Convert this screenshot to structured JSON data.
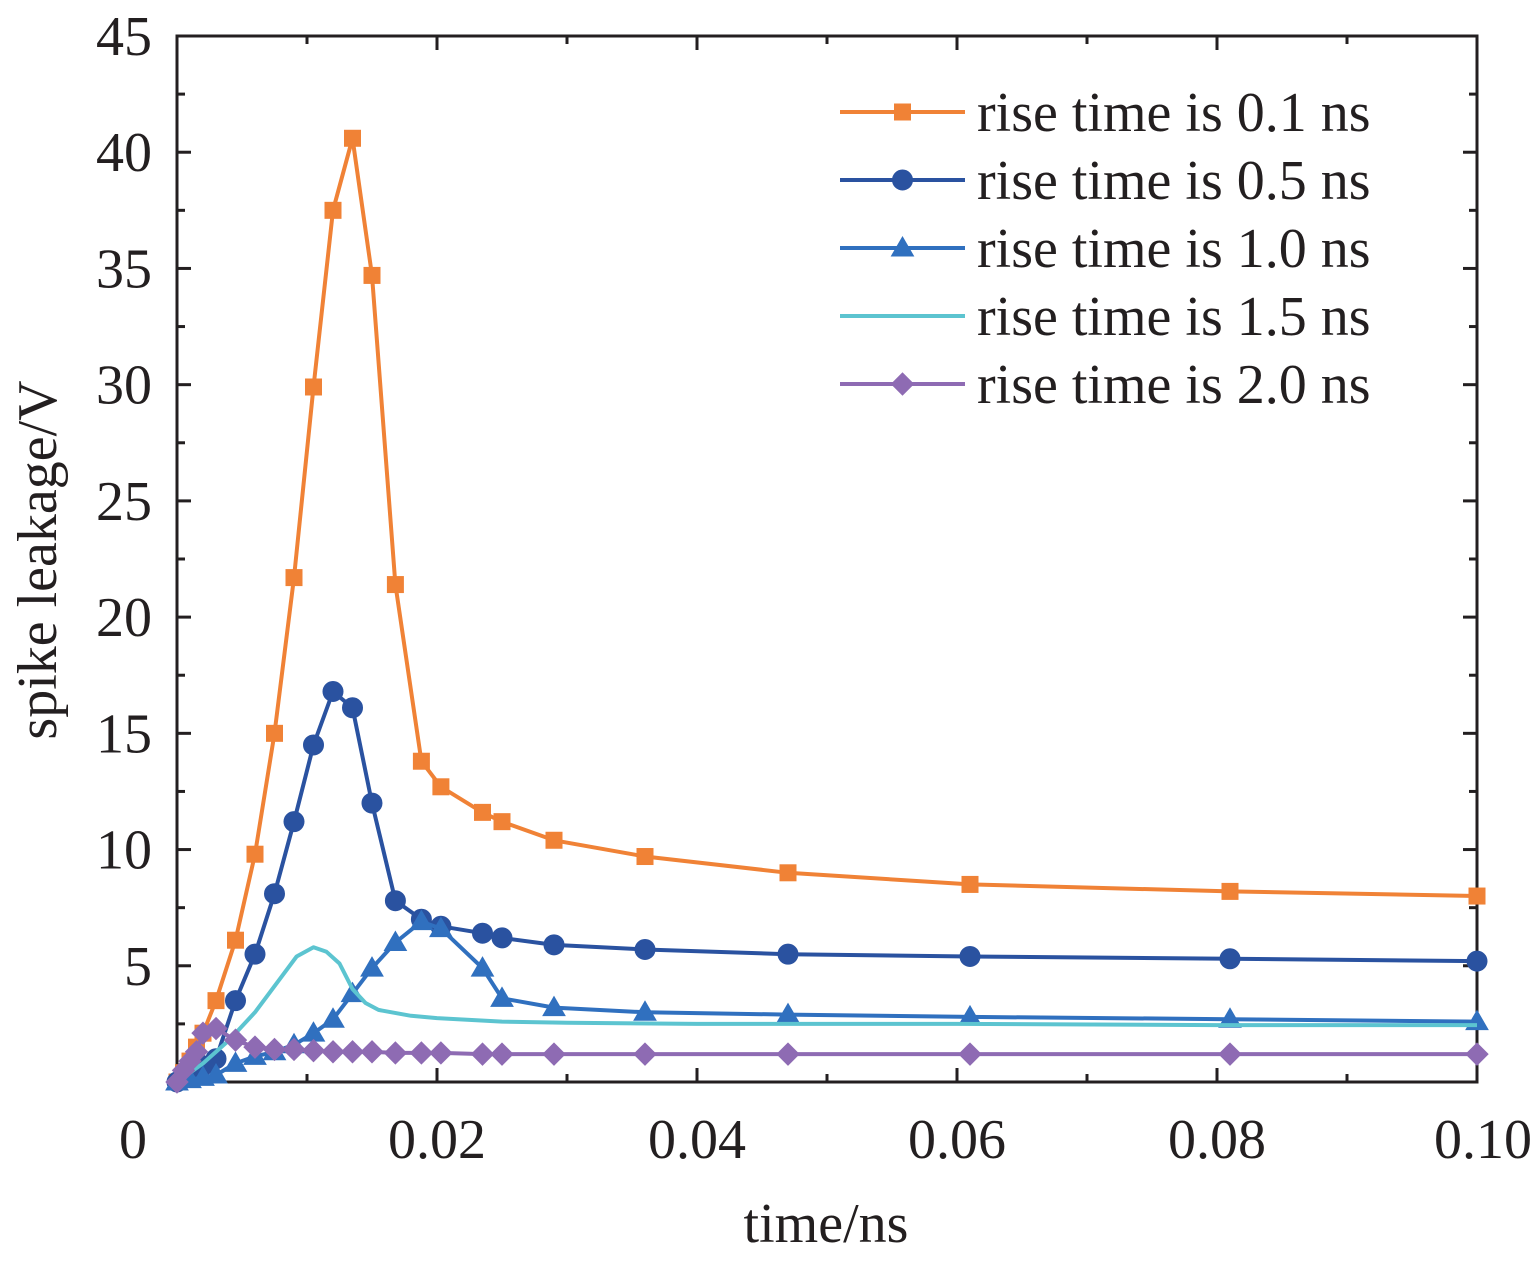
{
  "chart_data": {
    "type": "line",
    "title": "",
    "xlabel": "time/ns",
    "ylabel": "spike leakage/V",
    "xlim": [
      0,
      0.1
    ],
    "ylim": [
      0,
      45
    ],
    "x_ticks": [
      {
        "value": 0,
        "label": "0"
      },
      {
        "value": 0.02,
        "label": "0.02"
      },
      {
        "value": 0.04,
        "label": "0.04"
      },
      {
        "value": 0.06,
        "label": "0.06"
      },
      {
        "value": 0.08,
        "label": "0.08"
      },
      {
        "value": 0.1,
        "label": "0.10"
      }
    ],
    "y_ticks": [
      {
        "value": 5,
        "label": "5"
      },
      {
        "value": 10,
        "label": "10"
      },
      {
        "value": 15,
        "label": "15"
      },
      {
        "value": 20,
        "label": "20"
      },
      {
        "value": 25,
        "label": "25"
      },
      {
        "value": 30,
        "label": "30"
      },
      {
        "value": 35,
        "label": "35"
      },
      {
        "value": 40,
        "label": "40"
      },
      {
        "value": 45,
        "label": "45"
      }
    ],
    "grid": false,
    "legend_position": "top-right",
    "series": [
      {
        "name": "rise time is 0.1 ns",
        "color": "#f08236",
        "marker": "square",
        "points": [
          [
            0,
            0
          ],
          [
            0.0005,
            0.4
          ],
          [
            0.001,
            0.9
          ],
          [
            0.0015,
            1.5
          ],
          [
            0.002,
            2.1
          ],
          [
            0.003,
            3.5
          ],
          [
            0.0045,
            6.1
          ],
          [
            0.006,
            9.8
          ],
          [
            0.0075,
            15.0
          ],
          [
            0.009,
            21.7
          ],
          [
            0.0105,
            29.9
          ],
          [
            0.012,
            37.5
          ],
          [
            0.0135,
            40.6
          ],
          [
            0.015,
            34.7
          ],
          [
            0.0168,
            21.4
          ],
          [
            0.0188,
            13.8
          ],
          [
            0.0203,
            12.7
          ],
          [
            0.0235,
            11.6
          ],
          [
            0.025,
            11.2
          ],
          [
            0.029,
            10.4
          ],
          [
            0.036,
            9.7
          ],
          [
            0.047,
            9.0
          ],
          [
            0.061,
            8.5
          ],
          [
            0.081,
            8.2
          ],
          [
            0.1,
            8.0
          ]
        ]
      },
      {
        "name": "rise time is 0.5 ns",
        "color": "#2a52a0",
        "marker": "circle",
        "points": [
          [
            0,
            0
          ],
          [
            0.001,
            0.4
          ],
          [
            0.002,
            0.7
          ],
          [
            0.003,
            1.0
          ],
          [
            0.0045,
            3.5
          ],
          [
            0.006,
            5.5
          ],
          [
            0.0075,
            8.1
          ],
          [
            0.009,
            11.2
          ],
          [
            0.0105,
            14.5
          ],
          [
            0.012,
            16.8
          ],
          [
            0.0135,
            16.1
          ],
          [
            0.015,
            12.0
          ],
          [
            0.0168,
            7.8
          ],
          [
            0.0188,
            7.0
          ],
          [
            0.0203,
            6.7
          ],
          [
            0.0235,
            6.4
          ],
          [
            0.025,
            6.2
          ],
          [
            0.029,
            5.9
          ],
          [
            0.036,
            5.7
          ],
          [
            0.047,
            5.5
          ],
          [
            0.061,
            5.4
          ],
          [
            0.081,
            5.3
          ],
          [
            0.1,
            5.2
          ]
        ]
      },
      {
        "name": "rise time is 1.0 ns",
        "color": "#3070bf",
        "marker": "triangle",
        "points": [
          [
            0,
            0
          ],
          [
            0.001,
            0.1
          ],
          [
            0.002,
            0.2
          ],
          [
            0.003,
            0.3
          ],
          [
            0.0045,
            0.8
          ],
          [
            0.006,
            1.1
          ],
          [
            0.0075,
            1.3
          ],
          [
            0.009,
            1.6
          ],
          [
            0.0105,
            2.1
          ],
          [
            0.012,
            2.7
          ],
          [
            0.0135,
            3.8
          ],
          [
            0.015,
            4.9
          ],
          [
            0.0168,
            6.0
          ],
          [
            0.0188,
            6.9
          ],
          [
            0.0203,
            6.6
          ],
          [
            0.0235,
            4.9
          ],
          [
            0.025,
            3.6
          ],
          [
            0.029,
            3.2
          ],
          [
            0.036,
            3.0
          ],
          [
            0.047,
            2.9
          ],
          [
            0.061,
            2.8
          ],
          [
            0.081,
            2.7
          ],
          [
            0.1,
            2.6
          ]
        ]
      },
      {
        "name": "rise time is 1.5 ns",
        "color": "#5cc4d0",
        "marker": "none",
        "points": [
          [
            0,
            0
          ],
          [
            0.002,
            0.8
          ],
          [
            0.004,
            1.8
          ],
          [
            0.006,
            3.0
          ],
          [
            0.008,
            4.5
          ],
          [
            0.0092,
            5.4
          ],
          [
            0.0105,
            5.8
          ],
          [
            0.0115,
            5.6
          ],
          [
            0.0125,
            5.1
          ],
          [
            0.0135,
            4.0
          ],
          [
            0.0145,
            3.4
          ],
          [
            0.0155,
            3.1
          ],
          [
            0.018,
            2.85
          ],
          [
            0.02,
            2.75
          ],
          [
            0.025,
            2.6
          ],
          [
            0.03,
            2.55
          ],
          [
            0.04,
            2.5
          ],
          [
            0.06,
            2.5
          ],
          [
            0.08,
            2.45
          ],
          [
            0.1,
            2.45
          ]
        ]
      },
      {
        "name": "rise time is 2.0 ns",
        "color": "#8e6bb3",
        "marker": "diamond",
        "points": [
          [
            0,
            0
          ],
          [
            0.0005,
            0.5
          ],
          [
            0.001,
            0.9
          ],
          [
            0.0015,
            1.3
          ],
          [
            0.002,
            2.1
          ],
          [
            0.003,
            2.3
          ],
          [
            0.0045,
            1.8
          ],
          [
            0.006,
            1.5
          ],
          [
            0.0075,
            1.4
          ],
          [
            0.009,
            1.4
          ],
          [
            0.0105,
            1.35
          ],
          [
            0.012,
            1.3
          ],
          [
            0.0135,
            1.3
          ],
          [
            0.015,
            1.3
          ],
          [
            0.0168,
            1.25
          ],
          [
            0.0188,
            1.25
          ],
          [
            0.0203,
            1.25
          ],
          [
            0.0235,
            1.2
          ],
          [
            0.025,
            1.2
          ],
          [
            0.029,
            1.2
          ],
          [
            0.036,
            1.2
          ],
          [
            0.047,
            1.2
          ],
          [
            0.061,
            1.2
          ],
          [
            0.081,
            1.2
          ],
          [
            0.1,
            1.2
          ]
        ]
      }
    ]
  }
}
